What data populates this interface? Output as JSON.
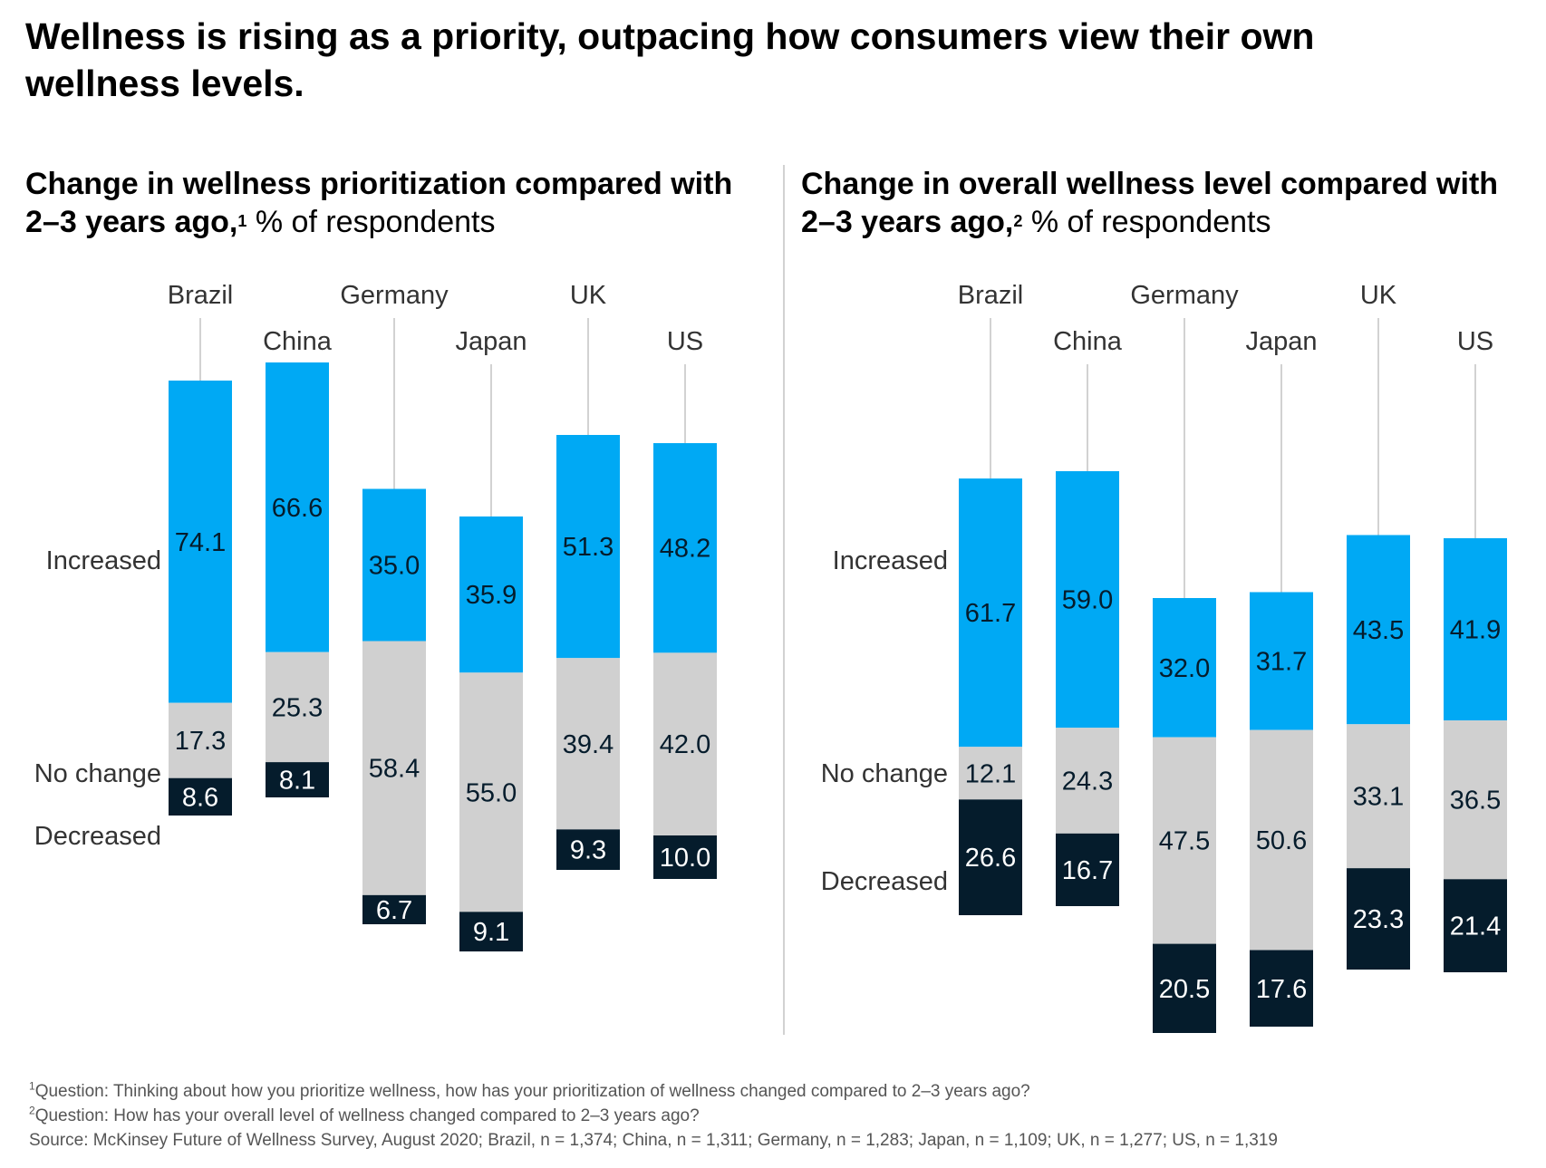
{
  "title": "Wellness is rising as a priority, outpacing how consumers view their own wellness levels.",
  "colors": {
    "increased": "#00a9f4",
    "no_change": "#d0d0d0",
    "decreased": "#051c2c",
    "leader": "#d2d2d2"
  },
  "chart_data": [
    {
      "type": "bar",
      "stacked": true,
      "title": "Change in wellness prioritization compared with 2–3 years ago,",
      "footnote_mark": "1",
      "subtitle": "% of respondents",
      "categories": [
        "Brazil",
        "China",
        "Germany",
        "Japan",
        "UK",
        "US"
      ],
      "series": [
        {
          "name": "Increased",
          "values": [
            74.1,
            66.6,
            35.0,
            35.9,
            51.3,
            48.2
          ]
        },
        {
          "name": "No change",
          "values": [
            17.3,
            25.3,
            58.4,
            55.0,
            39.4,
            42.0
          ]
        },
        {
          "name": "Decreased",
          "values": [
            8.6,
            8.1,
            6.7,
            9.1,
            9.3,
            10.0
          ]
        }
      ]
    },
    {
      "type": "bar",
      "stacked": true,
      "title": "Change in overall wellness level compared with 2–3 years ago,",
      "footnote_mark": "2",
      "subtitle": "% of respondents",
      "categories": [
        "Brazil",
        "China",
        "Germany",
        "Japan",
        "UK",
        "US"
      ],
      "series": [
        {
          "name": "Increased",
          "values": [
            61.7,
            59.0,
            32.0,
            31.7,
            43.5,
            41.9
          ]
        },
        {
          "name": "No change",
          "values": [
            12.1,
            24.3,
            47.5,
            50.6,
            33.1,
            36.5
          ]
        },
        {
          "name": "Decreased",
          "values": [
            26.6,
            16.7,
            20.5,
            17.6,
            23.3,
            21.4
          ]
        }
      ]
    }
  ],
  "footnotes": {
    "note1_mark": "1",
    "note1": "Question: Thinking about how you prioritize wellness, how has your prioritization of wellness changed compared to 2–3 years ago?",
    "note2_mark": "2",
    "note2": "Question: How has your overall level of wellness changed compared to 2–3 years ago?",
    "source": "Source: McKinsey Future of Wellness Survey, August 2020; Brazil, n = 1,374; China, n = 1,311; Germany, n = 1,283; Japan, n = 1,109; UK, n = 1,277; US, n = 1,319"
  }
}
